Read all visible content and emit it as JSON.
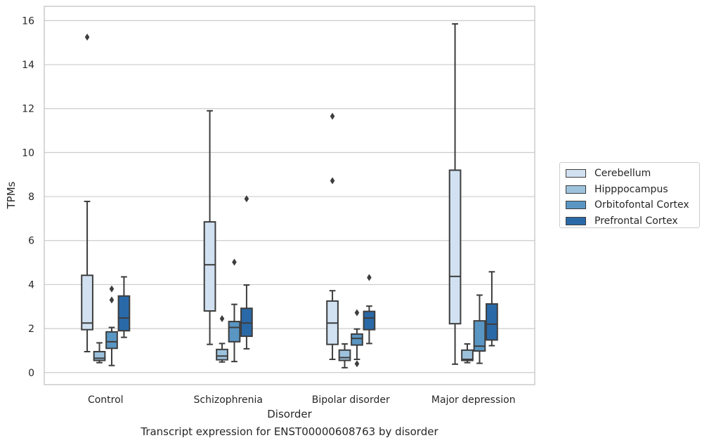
{
  "chart_data": {
    "type": "box",
    "title": "Transcript expression for ENST00000608763 by disorder",
    "xlabel": "Disorder",
    "ylabel": "TPMs",
    "ylim": [
      -0.55,
      16.65
    ],
    "yticks": [
      0,
      2,
      4,
      6,
      8,
      10,
      12,
      14,
      16
    ],
    "grid": true,
    "legend_position": "right",
    "categories": [
      "Control",
      "Schizophrenia",
      "Bipolar disorder",
      "Major depression"
    ],
    "series": [
      {
        "name": "Cerebellum",
        "color": "#d1e1f1",
        "boxes": [
          {
            "whisker_low": 0.95,
            "q1": 1.95,
            "median": 2.25,
            "q3": 4.42,
            "whisker_high": 7.78,
            "outliers": [
              15.25
            ]
          },
          {
            "whisker_low": 1.28,
            "q1": 2.8,
            "median": 4.9,
            "q3": 6.85,
            "whisker_high": 11.9,
            "outliers": []
          },
          {
            "whisker_low": 0.6,
            "q1": 1.28,
            "median": 2.25,
            "q3": 3.25,
            "whisker_high": 3.72,
            "outliers": [
              8.72,
              11.65
            ]
          },
          {
            "whisker_low": 0.38,
            "q1": 2.22,
            "median": 4.37,
            "q3": 9.2,
            "whisker_high": 15.85,
            "outliers": []
          }
        ]
      },
      {
        "name": "Hipppocampus",
        "color": "#9dc2dd",
        "boxes": [
          {
            "whisker_low": 0.45,
            "q1": 0.55,
            "median": 0.65,
            "q3": 0.95,
            "whisker_high": 1.35,
            "outliers": []
          },
          {
            "whisker_low": 0.48,
            "q1": 0.58,
            "median": 0.75,
            "q3": 1.05,
            "whisker_high": 1.32,
            "outliers": [
              2.45
            ]
          },
          {
            "whisker_low": 0.22,
            "q1": 0.55,
            "median": 0.68,
            "q3": 1.02,
            "whisker_high": 1.3,
            "outliers": []
          },
          {
            "whisker_low": 0.45,
            "q1": 0.55,
            "median": 0.6,
            "q3": 1.02,
            "whisker_high": 1.3,
            "outliers": []
          }
        ]
      },
      {
        "name": "Orbitofontal Cortex",
        "color": "#5a96c3",
        "boxes": [
          {
            "whisker_low": 0.32,
            "q1": 1.1,
            "median": 1.4,
            "q3": 1.85,
            "whisker_high": 2.05,
            "outliers": [
              3.3,
              3.8
            ]
          },
          {
            "whisker_low": 0.5,
            "q1": 1.4,
            "median": 2.05,
            "q3": 2.32,
            "whisker_high": 3.1,
            "outliers": [
              5.02
            ]
          },
          {
            "whisker_low": 0.6,
            "q1": 1.25,
            "median": 1.55,
            "q3": 1.75,
            "whisker_high": 1.98,
            "outliers": [
              0.4,
              2.72
            ]
          },
          {
            "whisker_low": 0.42,
            "q1": 0.98,
            "median": 1.2,
            "q3": 2.35,
            "whisker_high": 3.52,
            "outliers": []
          }
        ]
      },
      {
        "name": "Prefrontal Cortex",
        "color": "#2a69a8",
        "boxes": [
          {
            "whisker_low": 1.6,
            "q1": 1.9,
            "median": 2.48,
            "q3": 3.48,
            "whisker_high": 4.35,
            "outliers": []
          },
          {
            "whisker_low": 1.08,
            "q1": 1.65,
            "median": 2.25,
            "q3": 2.92,
            "whisker_high": 3.98,
            "outliers": [
              7.9
            ]
          },
          {
            "whisker_low": 1.32,
            "q1": 1.95,
            "median": 2.48,
            "q3": 2.78,
            "whisker_high": 3.02,
            "outliers": [
              4.32
            ]
          },
          {
            "whisker_low": 1.22,
            "q1": 1.48,
            "median": 2.2,
            "q3": 3.12,
            "whisker_high": 4.58,
            "outliers": []
          }
        ]
      }
    ]
  }
}
